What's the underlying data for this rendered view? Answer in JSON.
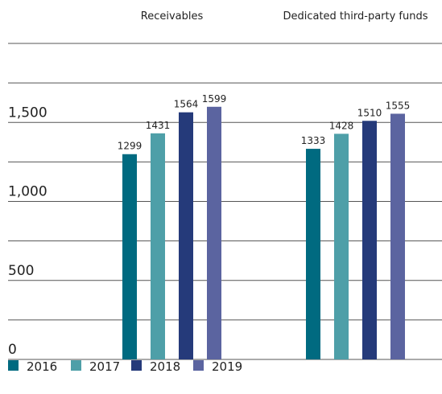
{
  "chart_data": {
    "type": "bar",
    "categories": [
      "Receivables",
      "Dedicated third-party funds"
    ],
    "series": [
      {
        "name": "2016",
        "color": "#006a80",
        "values": [
          1299,
          1333
        ]
      },
      {
        "name": "2017",
        "color": "#4e9fa8",
        "values": [
          1431,
          1428
        ]
      },
      {
        "name": "2018",
        "color": "#253a7a",
        "values": [
          1564,
          1510
        ]
      },
      {
        "name": "2019",
        "color": "#5b64a0",
        "values": [
          1599,
          1555
        ]
      }
    ],
    "ylim": [
      0,
      2000
    ],
    "yticks": [
      0,
      500,
      {
        "value": 1000,
        "label": "1,000"
      },
      {
        "value": 1500,
        "label": "1,500"
      }
    ],
    "minor_yticks": [
      250,
      750,
      1250,
      1750,
      2000
    ],
    "grid": true,
    "legend": "bottom"
  }
}
